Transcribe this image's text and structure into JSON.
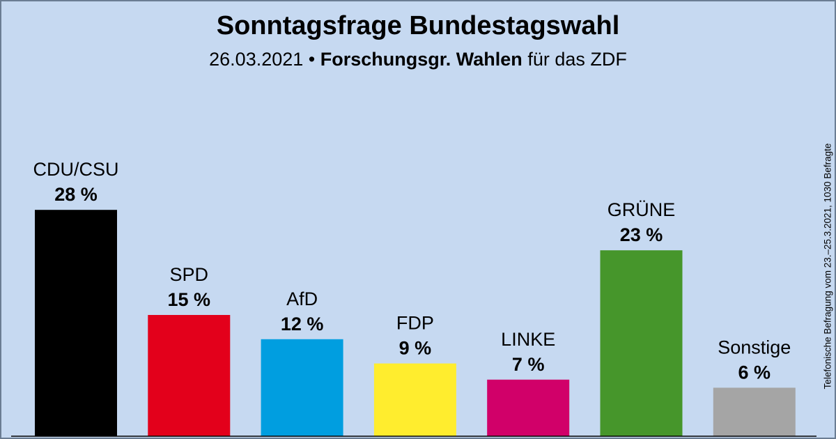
{
  "header": {
    "title": "Sonntagsfrage Bundestagswahl",
    "subtitle_date": "26.03.2021",
    "subtitle_separator": "•",
    "subtitle_institute": "Forschungsgr. Wahlen",
    "subtitle_suffix": "für das ZDF"
  },
  "side_note": "Telefonische Befragung vom 23.–25.3.2021, 1030 Befragte",
  "chart_data": {
    "type": "bar",
    "title": "Sonntagsfrage Bundestagswahl",
    "xlabel": "",
    "ylabel": "",
    "ylim": [
      0,
      30
    ],
    "grid": false,
    "categories": [
      "CDU/CSU",
      "SPD",
      "AfD",
      "FDP",
      "LINKE",
      "GRÜNE",
      "Sonstige"
    ],
    "values": [
      28,
      15,
      12,
      9,
      7,
      23,
      6
    ],
    "value_labels": [
      "28 %",
      "15 %",
      "12 %",
      "9 %",
      "7 %",
      "23 %",
      "6 %"
    ],
    "colors": [
      "#000000",
      "#e3001b",
      "#009ee0",
      "#ffed2e",
      "#d10069",
      "#46962b",
      "#a5a5a5"
    ]
  }
}
